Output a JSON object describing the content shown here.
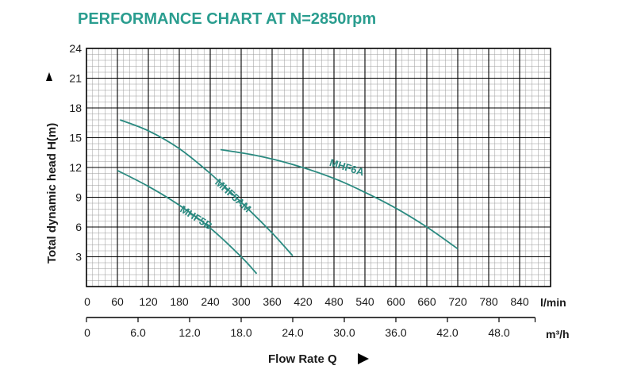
{
  "chart_data": {
    "type": "line",
    "title": "PERFORMANCE CHART AT N=2850rpm",
    "ylabel": "Total dynamic head H(m)",
    "xlabel": "Flow Rate Q",
    "x_unit": "l/min",
    "x2_unit": "m³/h",
    "xlim": [
      0,
      900
    ],
    "ylim": [
      0,
      24
    ],
    "x_ticks": [
      "0",
      "60",
      "120",
      "180",
      "240",
      "300",
      "360",
      "420",
      "480",
      "540",
      "600",
      "660",
      "720",
      "780",
      "840"
    ],
    "x2_ticks": [
      "0",
      "6.0",
      "12.0",
      "18.0",
      "24.0",
      "30.0",
      "36.0",
      "42.0",
      "48.0"
    ],
    "y_ticks": [
      "3",
      "6",
      "9",
      "12",
      "15",
      "18",
      "21",
      "24"
    ],
    "grid": true,
    "colors": {
      "title": "#2a9d8f",
      "curve": "#2a8a80",
      "grid_major": "#000000",
      "grid_minor": "#9a9a9a"
    },
    "series": [
      {
        "name": "MHF5B",
        "x": [
          60,
          120,
          180,
          240,
          300,
          330
        ],
        "y": [
          11.7,
          10.1,
          8.2,
          5.9,
          3.0,
          1.3
        ]
      },
      {
        "name": "MHF5AM",
        "x": [
          65,
          120,
          180,
          240,
          300,
          360,
          400
        ],
        "y": [
          16.8,
          15.7,
          13.9,
          11.4,
          8.5,
          5.4,
          3.1
        ]
      },
      {
        "name": "MHF6A",
        "x": [
          260,
          330,
          400,
          480,
          540,
          600,
          660,
          720
        ],
        "y": [
          13.8,
          13.2,
          12.3,
          10.9,
          9.5,
          7.9,
          6.0,
          3.8
        ]
      }
    ]
  }
}
